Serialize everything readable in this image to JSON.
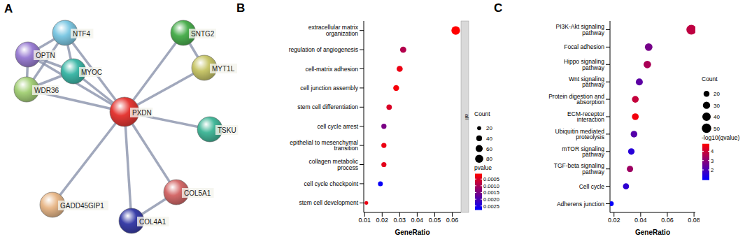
{
  "chart_data": [
    {
      "type": "network",
      "title": "A",
      "nodes": [
        {
          "label": "PXDN",
          "color": "#e53935"
        },
        {
          "label": "NTF4",
          "color": "#7ec8e3"
        },
        {
          "label": "OPTN",
          "color": "#9b7fd4"
        },
        {
          "label": "MYOC",
          "color": "#3fb8a8"
        },
        {
          "label": "WDR36",
          "color": "#a6d17a"
        },
        {
          "label": "SNTG2",
          "color": "#4caf50"
        },
        {
          "label": "MYT1L",
          "color": "#c8c66a"
        },
        {
          "label": "TSKU",
          "color": "#45b89a"
        },
        {
          "label": "GADD45GIP1",
          "color": "#e8b88a"
        },
        {
          "label": "COL4A1",
          "color": "#3a3fa8"
        },
        {
          "label": "COL5A1",
          "color": "#d46a6a"
        }
      ],
      "edges": [
        [
          "PXDN",
          "NTF4"
        ],
        [
          "PXDN",
          "OPTN"
        ],
        [
          "PXDN",
          "MYOC"
        ],
        [
          "PXDN",
          "WDR36"
        ],
        [
          "PXDN",
          "SNTG2"
        ],
        [
          "PXDN",
          "MYT1L"
        ],
        [
          "PXDN",
          "TSKU"
        ],
        [
          "PXDN",
          "GADD45GIP1"
        ],
        [
          "PXDN",
          "COL4A1"
        ],
        [
          "PXDN",
          "COL5A1"
        ],
        [
          "OPTN",
          "NTF4"
        ],
        [
          "OPTN",
          "MYOC"
        ],
        [
          "OPTN",
          "WDR36"
        ],
        [
          "NTF4",
          "MYOC"
        ],
        [
          "NTF4",
          "WDR36"
        ],
        [
          "MYOC",
          "WDR36"
        ],
        [
          "SNTG2",
          "MYT1L"
        ],
        [
          "COL4A1",
          "COL5A1"
        ]
      ]
    },
    {
      "type": "scatter",
      "title": "B",
      "xlabel": "GeneRatio",
      "facet_label": "all",
      "categories": [
        "extracellular matrix organization",
        "regulation of angiogenesis",
        "cell-matrix adhesion",
        "cell junction assembly",
        "stem cell differentiation",
        "cell cycle arrest",
        "epithelial to mesenchymal transition",
        "collagen metabolic process",
        "cell cycle checkpoint",
        "stem cell development"
      ],
      "values": [
        0.062,
        0.032,
        0.03,
        0.028,
        0.024,
        0.021,
        0.021,
        0.021,
        0.019,
        0.011
      ],
      "count": [
        90,
        47,
        45,
        42,
        36,
        32,
        32,
        31,
        29,
        16
      ],
      "pvalue": [
        0.0001,
        0.0009,
        0.0003,
        0.0002,
        0.0005,
        0.0015,
        0.0003,
        0.0004,
        0.0027,
        0.0003
      ],
      "xlim": [
        0.0095,
        0.065
      ],
      "xticks": [
        0.01,
        0.02,
        0.03,
        0.04,
        0.05,
        0.06
      ],
      "size_legend": {
        "title": "Count",
        "ticks": [
          20,
          40,
          60,
          80
        ]
      },
      "colorbar": {
        "title": "pvalue",
        "range": [
          0.0001,
          0.0028
        ],
        "ticks": [
          0.0005,
          {
            "value": 0.001,
            "label": "0.0010"
          },
          0.0015,
          {
            "value": 0.002,
            "label": "0.0020"
          },
          0.0025
        ],
        "colors": [
          "#ff0000",
          "#0000ff"
        ]
      }
    },
    {
      "type": "scatter",
      "title": "C",
      "xlabel": "GeneRatio",
      "categories": [
        "PI3K-Akt signaling pathway",
        "Focal adhesion",
        "Hippo signaling pathway",
        "Wnt signaling pathway",
        "Protein digestion and absorption",
        "ECM-receptor interaction",
        "Ubiquitin mediated proteolysis",
        "mTOR signaling pathway",
        "TGF-beta signaling pathway",
        "Cell cycle",
        "Adherens junction"
      ],
      "values": [
        0.078,
        0.046,
        0.045,
        0.039,
        0.036,
        0.036,
        0.035,
        0.033,
        0.032,
        0.029,
        0.018
      ],
      "count": [
        55,
        33,
        32,
        28,
        26,
        26,
        25,
        24,
        23,
        21,
        13
      ],
      "qvalue_log": [
        3.8,
        2.7,
        3.5,
        2.3,
        3.9,
        4.6,
        2.2,
        1.5,
        3.3,
        1.6,
        1.0
      ],
      "xlim": [
        0.017,
        0.081
      ],
      "xticks": [
        0.02,
        0.04,
        0.06,
        0.08
      ],
      "size_legend": {
        "title": "Count",
        "ticks": [
          20,
          30,
          40,
          50
        ]
      },
      "colorbar": {
        "title": "-log10(qvalue)",
        "range": [
          0.9,
          4.8
        ],
        "ticks": [
          2,
          3,
          4
        ],
        "colors": [
          "#0000ff",
          "#ff0000"
        ]
      }
    }
  ]
}
